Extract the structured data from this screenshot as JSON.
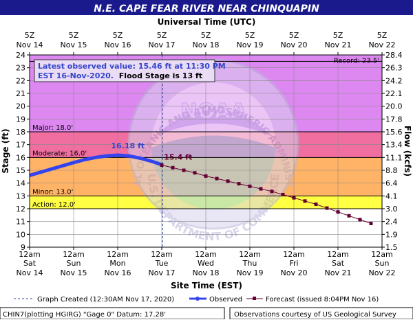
{
  "page": {
    "title": "N.E. CAPE FEAR RIVER NEAR CHINQUAPIN",
    "top_axis_title": "Universal Time (UTC)",
    "bottom_axis_title": "Site Time (EST)",
    "left_axis_title": "Stage (ft)",
    "right_axis_title": "Flow (kcfs)",
    "info_line1": "Latest observed value: 15.46 ft at 11:30 PM",
    "info_line2_blue": "EST 16-Nov-2020.",
    "info_line2_black": "Flood Stage is 13 ft",
    "record_label": "Record: 23.5'",
    "legend_graph_created": "Graph Created (12:30AM Nov 17, 2020)",
    "legend_observed": "Observed",
    "legend_forecast": "Forecast (issued 8:04PM Nov 16)",
    "footer_left": "CHIN7(plotting HGIRG) \"Gage 0\" Datum: 17.28'",
    "footer_right": "Observations courtesy of US Geological Survey",
    "peak_label": "16.18 ft",
    "forecast_start_label": "15.4 ft",
    "noaa_text": "NOAA",
    "seal_text_top": "NATIONAL OCEANIC AND ATMOSPHERIC ADMINISTRATION",
    "seal_text_bottom": "U.S. DEPARTMENT OF COMMERCE"
  },
  "colors": {
    "title_bar": "#1a1a8c",
    "record_band": "#dd88f0",
    "major_band": "#f06fa0",
    "moderate_band": "#ff6060",
    "minor_band": "#ffb366",
    "action_band": "#ffff44",
    "normal_band": "#ffffff",
    "observed": "#3344ee",
    "forecast": "#660033",
    "grid": "#8a8a8a",
    "label_blue": "#3344cc"
  },
  "chart_data": {
    "type": "line",
    "title": "N.E. CAPE FEAR RIVER NEAR CHINQUAPIN",
    "xlabel": "Site Time (EST)",
    "ylabel": "Stage (ft)",
    "y2label": "Flow (kcfs)",
    "x_unit": "days since Nov 14 12am EST",
    "xlim": [
      0,
      8
    ],
    "ylim": [
      9,
      24
    ],
    "y_ticks": [
      9,
      10,
      11,
      12,
      13,
      14,
      15,
      16,
      17,
      18,
      19,
      20,
      21,
      22,
      23,
      24
    ],
    "flow_ticks": [
      "1.5",
      "1.9",
      "2.4",
      "3.0",
      "4.1",
      "6.4",
      "8.8",
      "11.1",
      "13.4",
      "15.6",
      "17.8",
      "20.0",
      "22.1",
      "24.2",
      "26.3",
      "28.4"
    ],
    "bottom_ticks": [
      {
        "top": "12am",
        "mid": "Sat",
        "bottom": "Nov 14"
      },
      {
        "top": "12am",
        "mid": "Sun",
        "bottom": "Nov 15"
      },
      {
        "top": "12am",
        "mid": "Mon",
        "bottom": "Nov 16"
      },
      {
        "top": "12am",
        "mid": "Tue",
        "bottom": "Nov 17"
      },
      {
        "top": "12am",
        "mid": "Wed",
        "bottom": "Nov 18"
      },
      {
        "top": "12am",
        "mid": "Thu",
        "bottom": "Nov 19"
      },
      {
        "top": "12am",
        "mid": "Fri",
        "bottom": "Nov 20"
      },
      {
        "top": "12am",
        "mid": "Sat",
        "bottom": "Nov 21"
      },
      {
        "top": "12am",
        "mid": "Sun",
        "bottom": "Nov 22"
      }
    ],
    "top_ticks": [
      {
        "top": "5Z",
        "bottom": "Nov 14"
      },
      {
        "top": "5Z",
        "bottom": "Nov 15"
      },
      {
        "top": "5Z",
        "bottom": "Nov 16"
      },
      {
        "top": "5Z",
        "bottom": "Nov 17"
      },
      {
        "top": "5Z",
        "bottom": "Nov 18"
      },
      {
        "top": "5Z",
        "bottom": "Nov 19"
      },
      {
        "top": "5Z",
        "bottom": "Nov 20"
      },
      {
        "top": "5Z",
        "bottom": "Nov 21"
      },
      {
        "top": "5Z",
        "bottom": "Nov 22"
      }
    ],
    "flood_categories": [
      {
        "name": "Record",
        "value": 23.5,
        "label": "Record: 23.5'"
      },
      {
        "name": "Major",
        "value": 18.0,
        "label": "Major: 18.0'"
      },
      {
        "name": "Moderate",
        "value": 16.0,
        "label": "Moderate: 16.0'"
      },
      {
        "name": "Minor",
        "value": 13.0,
        "label": "Minor: 13.0'"
      },
      {
        "name": "Action",
        "value": 12.0,
        "label": "Action: 12.0'"
      }
    ],
    "graph_created_x": 3.02,
    "series": [
      {
        "name": "Observed",
        "x": [
          0.0,
          0.25,
          0.5,
          0.75,
          1.0,
          1.25,
          1.5,
          1.75,
          2.0,
          2.25,
          2.5,
          2.75,
          2.98
        ],
        "y": [
          14.6,
          14.85,
          15.1,
          15.35,
          15.6,
          15.83,
          16.0,
          16.12,
          16.18,
          16.12,
          15.95,
          15.72,
          15.46
        ]
      },
      {
        "name": "Forecast",
        "x": [
          3.0,
          3.25,
          3.5,
          3.75,
          4.0,
          4.25,
          4.5,
          4.75,
          5.0,
          5.25,
          5.5,
          5.75,
          6.0,
          6.25,
          6.5,
          6.75,
          7.0,
          7.25,
          7.5,
          7.75
        ],
        "y": [
          15.4,
          15.2,
          15.0,
          14.8,
          14.55,
          14.35,
          14.15,
          13.95,
          13.75,
          13.55,
          13.35,
          13.1,
          12.85,
          12.6,
          12.35,
          12.05,
          11.75,
          11.45,
          11.15,
          10.85
        ]
      }
    ]
  }
}
